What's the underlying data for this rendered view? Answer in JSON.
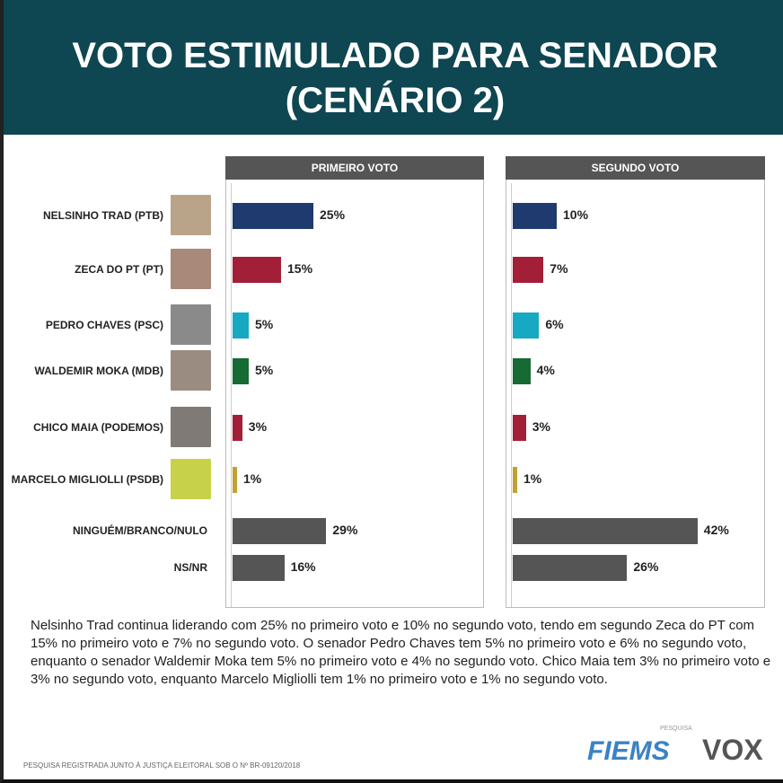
{
  "title_line1": "VOTO ESTIMULADO PARA SENADOR",
  "title_line2": "(CENÁRIO 2)",
  "chart_data": [
    {
      "type": "bar",
      "orientation": "horizontal",
      "title": "PRIMEIRO VOTO",
      "categories": [
        "NELSINHO TRAD (PTB)",
        "ZECA DO PT (PT)",
        "PEDRO CHAVES (PSC)",
        "WALDEMIR MOKA (MDB)",
        "CHICO MAIA (PODEMOS)",
        "MARCELO MIGLIOLLI (PSDB)",
        "NINGUÉM/BRANCO/NULO",
        "NS/NR"
      ],
      "values": [
        25,
        15,
        5,
        5,
        3,
        1,
        29,
        16
      ],
      "labels": [
        "25%",
        "15%",
        "5%",
        "5%",
        "3%",
        "1%",
        "29%",
        "16%"
      ],
      "colors": [
        "#1e3a6e",
        "#a31f38",
        "#18a9c2",
        "#166a33",
        "#a31f38",
        "#c1a135",
        "#555555",
        "#555555"
      ]
    },
    {
      "type": "bar",
      "orientation": "horizontal",
      "title": "SEGUNDO VOTO",
      "categories": [
        "NELSINHO TRAD (PTB)",
        "ZECA DO PT (PT)",
        "PEDRO CHAVES (PSC)",
        "WALDEMIR MOKA (MDB)",
        "CHICO MAIA (PODEMOS)",
        "MARCELO MIGLIOLLI (PSDB)",
        "NINGUÉM/BRANCO/NULO",
        "NS/NR"
      ],
      "values": [
        10,
        7,
        6,
        4,
        3,
        1,
        42,
        26
      ],
      "labels": [
        "10%",
        "7%",
        "6%",
        "4%",
        "3%",
        "1%",
        "42%",
        "26%"
      ],
      "colors": [
        "#1e3a6e",
        "#a31f38",
        "#18a9c2",
        "#166a33",
        "#a31f38",
        "#c1a135",
        "#555555",
        "#555555"
      ]
    }
  ],
  "description": "Nelsinho Trad continua liderando com 25% no primeiro voto e 10% no segundo voto, tendo em segundo Zeca do PT com 15% no primeiro voto e 7% no segundo voto. O senador Pedro Chaves tem 5% no primeiro voto e 6% no segundo voto, enquanto o senador Waldemir Moka tem 5% no primeiro voto e 4% no segundo voto. Chico Maia tem 3% no primeiro voto e 3% no segundo voto, enquanto Marcelo Migliolli tem 1% no primeiro voto e 1% no segundo voto.",
  "footer": "PESQUISA REGISTRADA JUNTO À JUSTIÇA ELEITORAL SOB O Nº BR-09120/2018",
  "pesquisa_label": "PESQUISA",
  "logos": [
    "FIEMS",
    "VOX"
  ]
}
